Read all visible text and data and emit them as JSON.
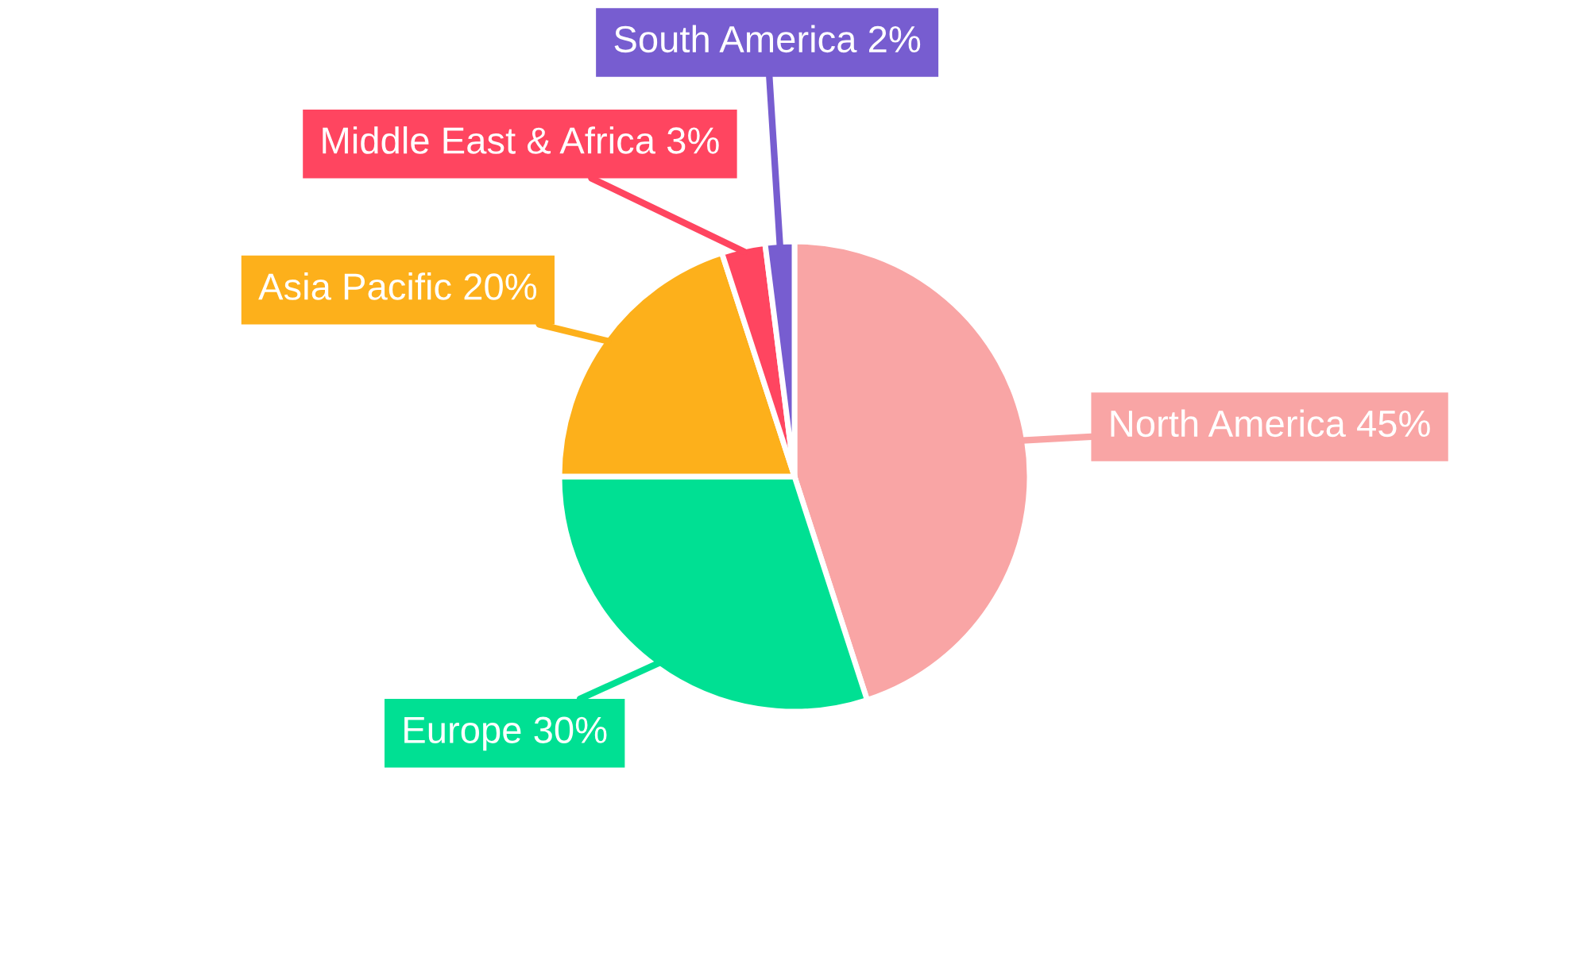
{
  "chart_data": {
    "type": "pie",
    "categories": [
      "North America",
      "Europe",
      "Asia Pacific",
      "Middle East & Africa",
      "South America"
    ],
    "values": [
      45,
      30,
      20,
      3,
      2
    ],
    "value_labels": [
      "45%",
      "30%",
      "20%",
      "3%",
      "2%"
    ],
    "colors": [
      "#f9a5a5",
      "#00e093",
      "#fdb01b",
      "#ff4560",
      "#775dd0"
    ],
    "legend": false
  }
}
